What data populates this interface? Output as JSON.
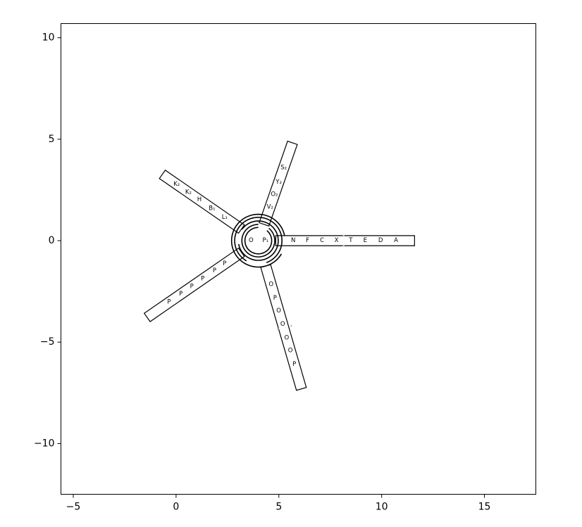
{
  "chart_data": {
    "type": "diagram",
    "xlim": [
      -5.6,
      17.5
    ],
    "ylim": [
      -12.5,
      10.7
    ],
    "xticks": [
      -5,
      0,
      5,
      10,
      15
    ],
    "yticks": [
      10,
      5,
      0,
      -5,
      -10
    ],
    "center": [
      4.0,
      0.0
    ],
    "center_labels": [
      {
        "text": "O",
        "x": 3.65,
        "y": 0.0
      },
      {
        "text": "P₁",
        "x": 4.35,
        "y": 0.0
      }
    ],
    "arms": [
      {
        "name": "arm-east",
        "angle": 0,
        "r_start": 0.85,
        "r_end": 7.6,
        "width": 0.5,
        "labels": [
          {
            "text": "N",
            "r": 1.7
          },
          {
            "text": "F",
            "r": 2.4
          },
          {
            "text": "C",
            "r": 3.1
          },
          {
            "text": "X",
            "r": 3.8
          },
          {
            "text": "T",
            "r": 4.5
          },
          {
            "text": "E",
            "r": 5.2
          },
          {
            "text": "D",
            "r": 5.95
          },
          {
            "text": "A",
            "r": 6.7
          }
        ]
      },
      {
        "name": "arm-north",
        "angle": 71,
        "r_start": 0.85,
        "r_end": 5.1,
        "width": 0.5,
        "labels": [
          {
            "text": "V₂",
            "r": 1.75
          },
          {
            "text": "O₂",
            "r": 2.4
          },
          {
            "text": "Y₂",
            "r": 3.05
          },
          {
            "text": "S₂",
            "r": 3.8
          }
        ]
      },
      {
        "name": "arm-northwest",
        "angle": 145,
        "r_start": 1.0,
        "r_end": 5.7,
        "width": 0.5,
        "labels": [
          {
            "text": "L₁",
            "r": 2.0
          },
          {
            "text": "B₁",
            "r": 2.75
          },
          {
            "text": "H",
            "r": 3.5
          },
          {
            "text": "K₂",
            "r": 4.15
          },
          {
            "text": "K₂",
            "r": 4.85
          }
        ]
      },
      {
        "name": "arm-southwest",
        "angle": 215,
        "r_start": 1.0,
        "r_end": 6.6,
        "width": 0.5,
        "labels": [
          {
            "text": "P",
            "r": 2.0
          },
          {
            "text": "P",
            "r": 2.6
          },
          {
            "text": "P",
            "r": 3.3
          },
          {
            "text": "P",
            "r": 3.95
          },
          {
            "text": "P",
            "r": 4.6
          },
          {
            "text": "P",
            "r": 5.3
          }
        ]
      },
      {
        "name": "arm-south",
        "angle": 286,
        "r_start": 1.3,
        "r_end": 7.6,
        "width": 0.5,
        "labels": [
          {
            "text": "O",
            "r": 2.25
          },
          {
            "text": "P",
            "r": 2.95
          },
          {
            "text": "O",
            "r": 3.6
          },
          {
            "text": "O",
            "r": 4.3
          },
          {
            "text": "O",
            "r": 5.0
          },
          {
            "text": "O",
            "r": 5.65
          },
          {
            "text": "P",
            "r": 6.35
          }
        ]
      }
    ],
    "rings": [
      {
        "r": 0.65,
        "gap_start": 50,
        "gap_end": 90
      },
      {
        "r": 0.8,
        "gap_start": 50,
        "gap_end": 90
      },
      {
        "r": 0.97,
        "gap_start": 145,
        "gap_end": 190
      },
      {
        "r": 1.15,
        "gap_start": 240,
        "gap_end": 290
      },
      {
        "r": 1.3,
        "gap_start": 330,
        "gap_end": 10
      }
    ],
    "dots": [
      {
        "x": 8.15,
        "y": 0.25
      },
      {
        "x": 8.15,
        "y": -0.25
      },
      {
        "x": 5.6,
        "y": -4.2
      },
      {
        "x": 4.95,
        "y": -4.35
      }
    ]
  }
}
